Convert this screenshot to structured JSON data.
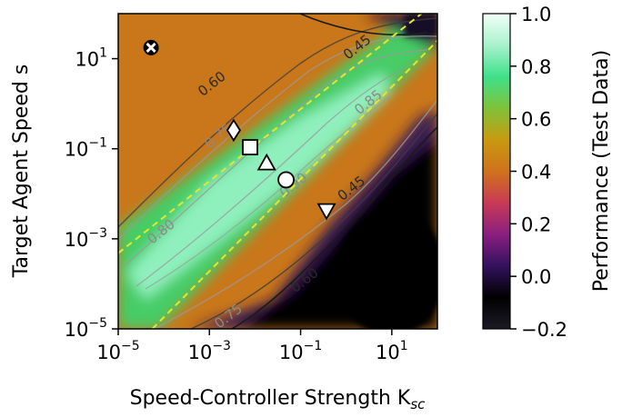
{
  "chart_data": {
    "type": "heatmap",
    "xlabel": "Speed-Controller Strength K",
    "xlabel_sub": "sc",
    "ylabel": "Target Agent Speed s",
    "x_scale": "log",
    "y_scale": "log",
    "xlim": [
      1e-05,
      100
    ],
    "ylim": [
      1e-05,
      100
    ],
    "x_ticks": [
      {
        "value": 1e-05,
        "base": "10",
        "exp": "−5"
      },
      {
        "value": 0.001,
        "base": "10",
        "exp": "−3"
      },
      {
        "value": 0.1,
        "base": "10",
        "exp": "−1"
      },
      {
        "value": 10,
        "base": "10",
        "exp": "1"
      }
    ],
    "y_ticks": [
      {
        "value": 10,
        "base": "10",
        "exp": "1"
      },
      {
        "value": 0.1,
        "base": "10",
        "exp": "−1"
      },
      {
        "value": 0.001,
        "base": "10",
        "exp": "−3"
      },
      {
        "value": 1e-05,
        "base": "10",
        "exp": "−5"
      }
    ],
    "colorbar": {
      "label": "Performance (Test Data)",
      "range": [
        -0.2,
        1.0
      ],
      "ticks": [
        {
          "value": 1.0,
          "label": "1.0"
        },
        {
          "value": 0.8,
          "label": "0.8"
        },
        {
          "value": 0.6,
          "label": "0.6"
        },
        {
          "value": 0.4,
          "label": "0.4"
        },
        {
          "value": 0.2,
          "label": "0.2"
        },
        {
          "value": 0.0,
          "label": "0.0"
        },
        {
          "value": -0.2,
          "label": "−0.2"
        }
      ],
      "colors": [
        "#1c1a26",
        "#000000",
        "#33125e",
        "#8a1f80",
        "#c83a55",
        "#d0721c",
        "#c99a10",
        "#7fc23a",
        "#3fe08a",
        "#a8f2cc",
        "#f2fff8"
      ]
    },
    "contour_labels": [
      {
        "text": "0.45",
        "x": 2.0,
        "y": 15
      },
      {
        "text": "0.60",
        "x": 0.0013,
        "y": 2.3
      },
      {
        "text": "0.75",
        "x": 0.0018,
        "y": 0.16
      },
      {
        "text": "0.80",
        "x": 0.0001,
        "y": 0.0012
      },
      {
        "text": "0.85",
        "x": 3.5,
        "y": 0.9
      },
      {
        "text": "0.90",
        "x": 0.08,
        "y": 0.013
      },
      {
        "text": "0.45",
        "x": 1.5,
        "y": 0.011
      },
      {
        "text": "0.60",
        "x": 0.14,
        "y": 0.0001
      },
      {
        "text": "0.75",
        "x": 0.003,
        "y": 1.6e-05
      }
    ],
    "dashed_lines": [
      {
        "from": [
          5.6e-05,
          1e-05
        ],
        "to": [
          100,
          25
        ],
        "color": "#e6e62a"
      },
      {
        "from": [
          1e-05,
          0.00048
        ],
        "to": [
          100,
          190
        ],
        "color": "#e6e62a"
      }
    ],
    "markers": [
      {
        "shape": "x",
        "x": 5.25e-05,
        "y": 17.6
      },
      {
        "shape": "diamond",
        "x": 0.0034,
        "y": 0.257
      },
      {
        "shape": "square",
        "x": 0.0078,
        "y": 0.108
      },
      {
        "shape": "triangle-up",
        "x": 0.018,
        "y": 0.0478
      },
      {
        "shape": "circle",
        "x": 0.048,
        "y": 0.0204
      },
      {
        "shape": "triangle-down",
        "x": 0.37,
        "y": 0.00426
      }
    ]
  }
}
